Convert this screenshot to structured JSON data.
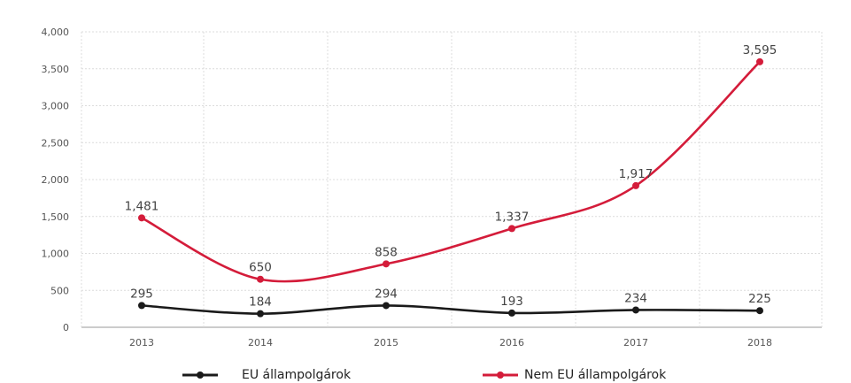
{
  "chart_data": {
    "type": "line",
    "categories": [
      "2013",
      "2014",
      "2015",
      "2016",
      "2017",
      "2018"
    ],
    "series": [
      {
        "name": "EU állampolgárok",
        "values": [
          295,
          184,
          294,
          193,
          234,
          225
        ],
        "color": "#1a1a1a"
      },
      {
        "name": "Nem EU állampolgárok",
        "values": [
          1481,
          650,
          858,
          1337,
          1917,
          3595
        ],
        "color": "#d41c3a"
      }
    ],
    "data_labels": {
      "s0": [
        "295",
        "184",
        "294",
        "193",
        "234",
        "225"
      ],
      "s1": [
        "1,481",
        "650",
        "858",
        "1,337",
        "1,917",
        "3,595"
      ]
    },
    "yticks": [
      "0",
      "500",
      "1,000",
      "1,500",
      "2,000",
      "2,500",
      "3,000",
      "3,500",
      "4,000"
    ],
    "ylim": [
      0,
      4000
    ],
    "grid": true,
    "legend_position": "bottom",
    "title": "",
    "xlabel": "",
    "ylabel": ""
  }
}
